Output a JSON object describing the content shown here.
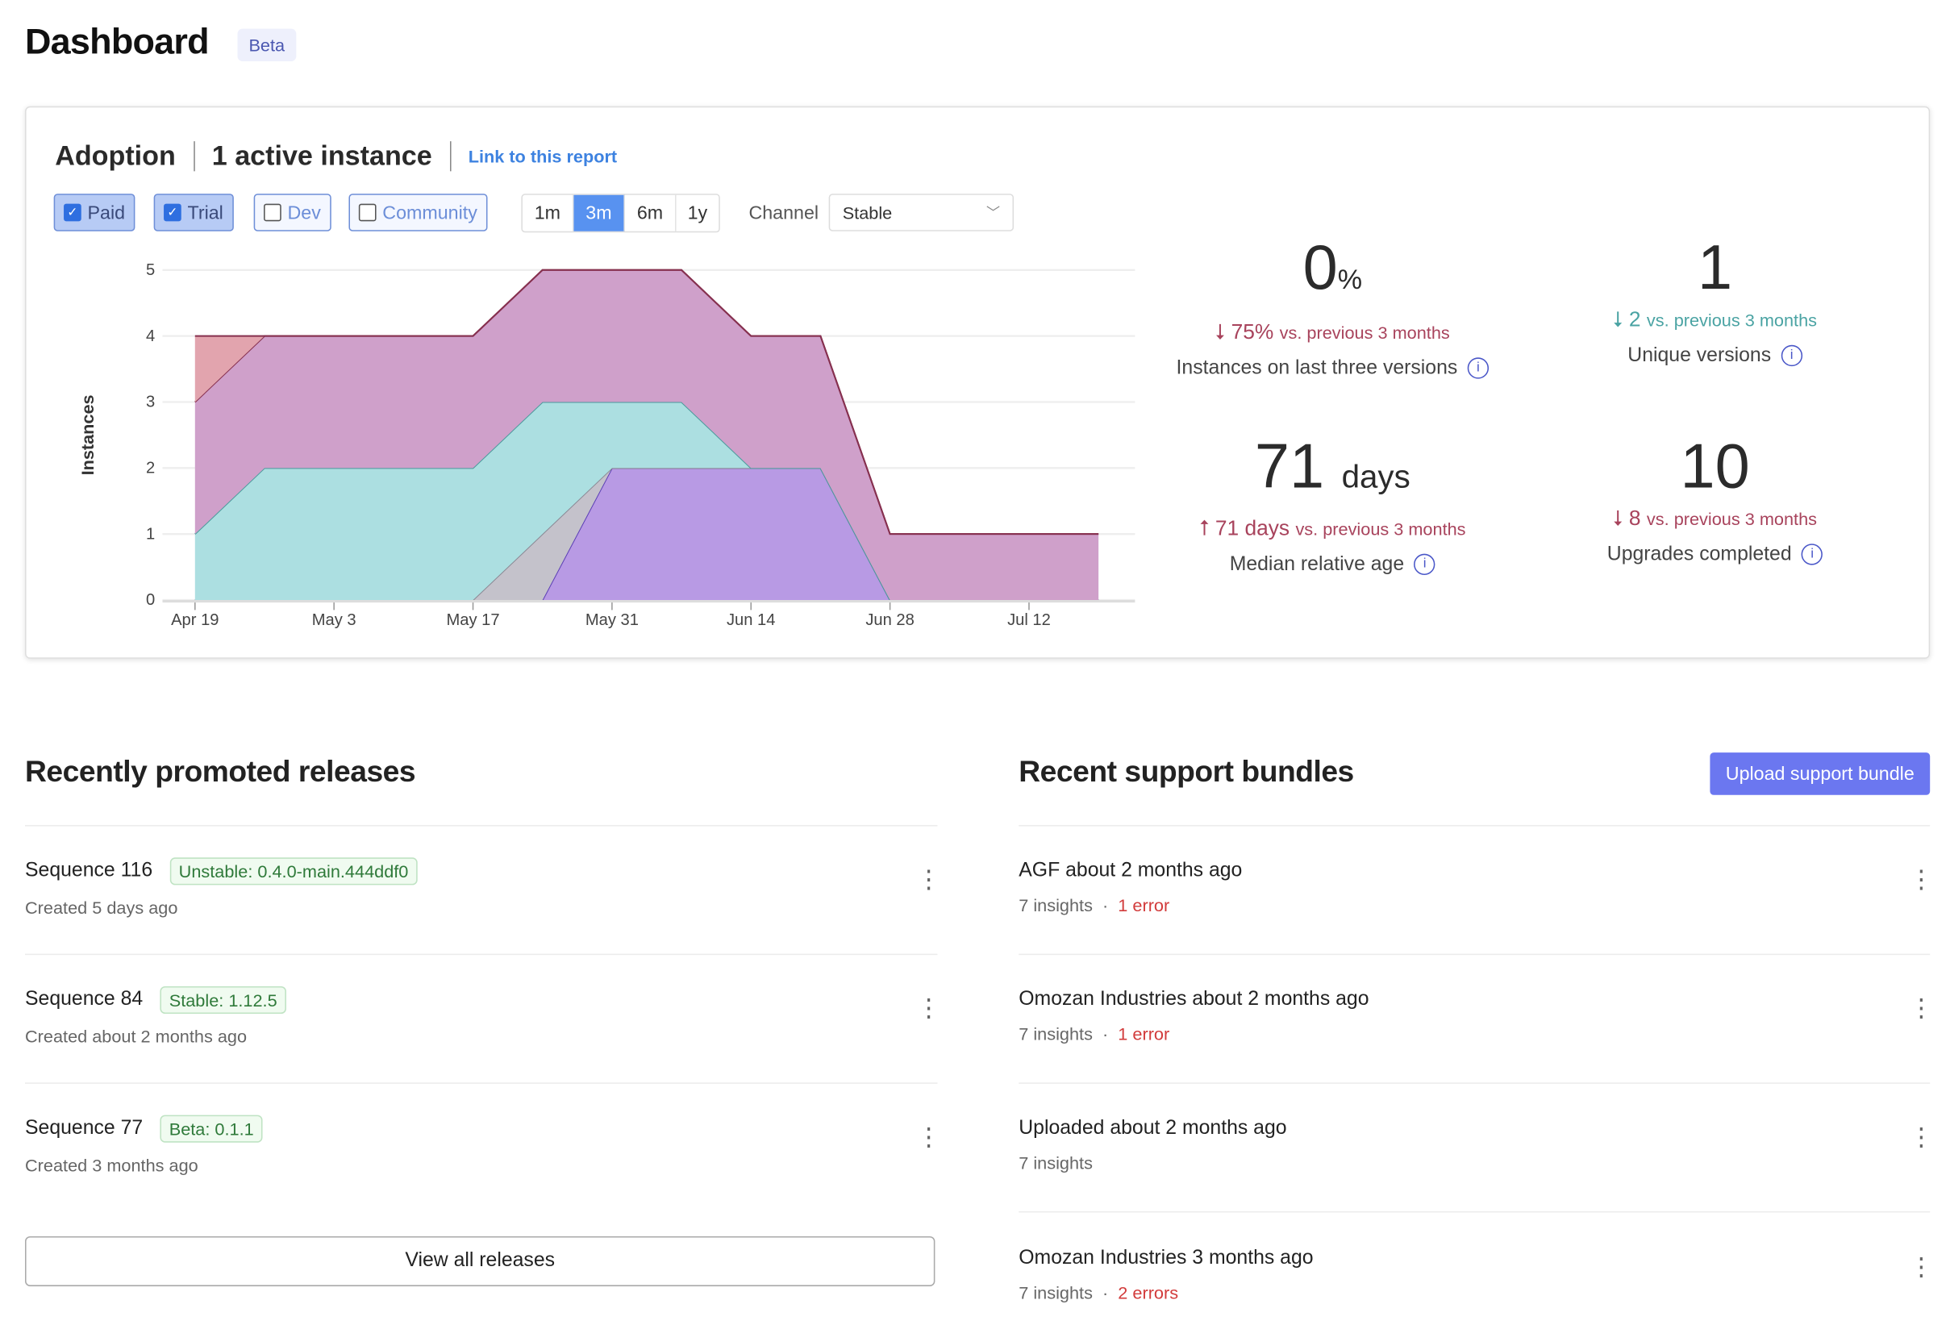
{
  "page": {
    "title": "Dashboard",
    "badge": "Beta"
  },
  "adoption": {
    "title": "Adoption",
    "active": "1 active instance",
    "link": "Link to this report",
    "filters": [
      {
        "label": "Paid",
        "checked": true
      },
      {
        "label": "Trial",
        "checked": true
      },
      {
        "label": "Dev",
        "checked": false
      },
      {
        "label": "Community",
        "checked": false
      }
    ],
    "ranges": [
      "1m",
      "3m",
      "6m",
      "1y"
    ],
    "active_range": "3m",
    "channel_label": "Channel",
    "channel_value": "Stable",
    "stats": [
      {
        "value": "0",
        "unit": "%",
        "delta": "75%",
        "delta_dir": "down",
        "delta_text": "vs. previous 3 months",
        "label": "Instances on last three versions",
        "color": "#a8435c"
      },
      {
        "value": "1",
        "unit": "",
        "delta": "2",
        "delta_dir": "down",
        "delta_text": "vs. previous 3 months",
        "label": "Unique versions",
        "color": "#4aa3a3"
      },
      {
        "value": "71",
        "unit": "days",
        "delta": "71 days",
        "delta_dir": "up",
        "delta_text": "vs. previous 3 months",
        "label": "Median relative age",
        "color": "#a8435c"
      },
      {
        "value": "10",
        "unit": "",
        "delta": "8",
        "delta_dir": "down",
        "delta_text": "vs. previous 3 months",
        "label": "Upgrades completed",
        "color": "#a8435c"
      }
    ]
  },
  "chart_data": {
    "type": "area",
    "stacked": true,
    "ylabel": "Instances",
    "ylim": [
      0,
      5
    ],
    "yticks": [
      0,
      1,
      2,
      3,
      4,
      5
    ],
    "grid": true,
    "legend": "none",
    "x": [
      "Apr 19",
      "Apr 26",
      "May 3",
      "May 10",
      "May 17",
      "May 24",
      "May 31",
      "Jun 7",
      "Jun 14",
      "Jun 21",
      "Jun 28",
      "Jul 5",
      "Jul 12",
      "Jul 19"
    ],
    "xticks": [
      "Apr 19",
      "May 3",
      "May 17",
      "May 31",
      "Jun 14",
      "Jun 28",
      "Jul 12"
    ],
    "series": [
      {
        "values": [
          0,
          0,
          0,
          0,
          0,
          0,
          2,
          2,
          2,
          2,
          0,
          0,
          0,
          0
        ],
        "color": "#b89ae4",
        "line": "#5b3fb5"
      },
      {
        "values": [
          0,
          0,
          0,
          0,
          0,
          1,
          0,
          0,
          0,
          0,
          0,
          0,
          0,
          0
        ],
        "color": "#c4c2cb",
        "line": "#8a8894"
      },
      {
        "values": [
          1,
          2,
          2,
          2,
          2,
          2,
          1,
          1,
          0,
          0,
          0,
          0,
          0,
          0
        ],
        "color": "#acdfe1",
        "line": "#4a9a9c"
      },
      {
        "values": [
          2,
          2,
          2,
          2,
          2,
          2,
          2,
          2,
          2,
          2,
          1,
          1,
          1,
          1
        ],
        "color": "#cfa0ca",
        "line": "#86304f"
      },
      {
        "values": [
          1,
          0,
          0,
          0,
          0,
          0,
          0,
          0,
          0,
          0,
          0,
          0,
          0,
          0
        ],
        "color": "#e2a4ae",
        "line": "#86304f"
      }
    ]
  },
  "releases": {
    "title": "Recently promoted releases",
    "items": [
      {
        "name": "Sequence 116",
        "tag": "Unstable: 0.4.0-main.444ddf0",
        "sub": "Created 5 days ago"
      },
      {
        "name": "Sequence 84",
        "tag": "Stable: 1.12.5",
        "sub": "Created about 2 months ago"
      },
      {
        "name": "Sequence 77",
        "tag": "Beta: 0.1.1",
        "sub": "Created 3 months ago"
      }
    ],
    "view_all": "View all releases"
  },
  "bundles": {
    "title": "Recent support bundles",
    "upload": "Upload support bundle",
    "items": [
      {
        "name": "AGF about 2 months ago",
        "insights": "7 insights",
        "errors": "1 error"
      },
      {
        "name": "Omozan Industries about 2 months ago",
        "insights": "7 insights",
        "errors": "1 error"
      },
      {
        "name": "Uploaded about 2 months ago",
        "insights": "7 insights",
        "errors": ""
      },
      {
        "name": "Omozan Industries 3 months ago",
        "insights": "7 insights",
        "errors": "2 errors"
      }
    ]
  }
}
